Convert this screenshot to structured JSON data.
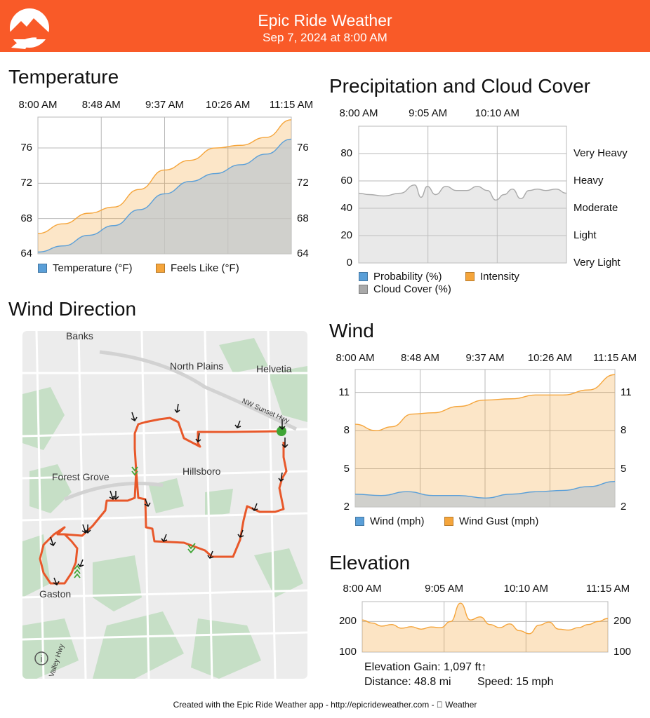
{
  "header": {
    "title": "Epic Ride Weather",
    "subtitle": "Sep 7, 2024 at 8:00 AM",
    "background": "#f95a28"
  },
  "temperature": {
    "title": "Temperature",
    "chart_data": {
      "type": "area",
      "x_ticks": [
        "8:00 AM",
        "8:48 AM",
        "9:37 AM",
        "10:26 AM",
        "11:15 AM"
      ],
      "y_ticks": [
        "64",
        "68",
        "72",
        "76"
      ],
      "ylim": [
        64,
        79.5
      ],
      "legend": [
        {
          "label": "Temperature (°F)",
          "color": "#5a9fd8"
        },
        {
          "label": "Feels Like (°F)",
          "color": "#f5a53b"
        }
      ],
      "series": [
        {
          "name": "Temperature (°F)",
          "color": "#5a9fd8",
          "x": [
            0,
            0.1,
            0.2,
            0.3,
            0.4,
            0.5,
            0.6,
            0.7,
            0.8,
            0.9,
            1
          ],
          "values": [
            64.2,
            64.9,
            66.1,
            67.2,
            69,
            70.8,
            72.2,
            73.1,
            74.1,
            75.3,
            77
          ]
        },
        {
          "name": "Feels Like (°F)",
          "color": "#f5a53b",
          "x": [
            0,
            0.1,
            0.2,
            0.3,
            0.4,
            0.5,
            0.6,
            0.7,
            0.8,
            0.9,
            1
          ],
          "values": [
            66.3,
            67.4,
            68.6,
            69.3,
            71.3,
            73.5,
            74.6,
            76,
            76.3,
            77.2,
            79.2
          ]
        }
      ]
    }
  },
  "precipitation": {
    "title": "Precipitation and Cloud Cover",
    "chart_data": {
      "type": "area",
      "x_ticks": [
        "8:00 AM",
        "9:05 AM",
        "10:10 AM"
      ],
      "y_ticks": [
        "0",
        "20",
        "40",
        "60",
        "80"
      ],
      "right_ticks": [
        "Very Light",
        "Light",
        "Moderate",
        "Heavy",
        "Very Heavy"
      ],
      "ylim": [
        0,
        100
      ],
      "legend": [
        {
          "label": "Probability (%)",
          "color": "#5a9fd8"
        },
        {
          "label": "Intensity",
          "color": "#f5a53b"
        },
        {
          "label": "Cloud Cover (%)",
          "color": "#a9a9a9"
        }
      ],
      "series": [
        {
          "name": "Cloud Cover (%)",
          "color": "#a9a9a9",
          "x": [
            0,
            0.05,
            0.12,
            0.2,
            0.27,
            0.3,
            0.33,
            0.37,
            0.42,
            0.47,
            0.52,
            0.57,
            0.62,
            0.66,
            0.7,
            0.74,
            0.78,
            0.82,
            0.86,
            0.9,
            0.95,
            1
          ],
          "values": [
            51,
            50,
            49,
            51,
            57,
            48,
            56,
            50,
            56,
            53,
            53,
            56,
            53,
            46,
            50,
            54,
            47,
            53,
            54,
            53,
            54,
            51
          ]
        }
      ]
    }
  },
  "wind_direction": {
    "title": "Wind Direction",
    "map": {
      "labels": [
        "Banks",
        "North Plains",
        "Helvetia",
        "NW Sunset Hwy",
        "Forest Grove",
        "Hillsboro",
        "Gaston",
        "Valley Hwy"
      ],
      "info_label": "i"
    }
  },
  "wind": {
    "title": "Wind",
    "chart_data": {
      "type": "area",
      "x_ticks": [
        "8:00 AM",
        "8:48 AM",
        "9:37 AM",
        "10:26 AM",
        "11:15 AM"
      ],
      "y_ticks": [
        "2",
        "5",
        "8",
        "11"
      ],
      "ylim": [
        2,
        12.8
      ],
      "legend": [
        {
          "label": "Wind (mph)",
          "color": "#5a9fd8"
        },
        {
          "label": "Wind Gust (mph)",
          "color": "#f5a53b"
        }
      ],
      "series": [
        {
          "name": "Wind (mph)",
          "color": "#5a9fd8",
          "x": [
            0,
            0.1,
            0.2,
            0.3,
            0.4,
            0.5,
            0.6,
            0.7,
            0.8,
            0.9,
            1
          ],
          "values": [
            3,
            2.9,
            3.2,
            2.9,
            2.9,
            2.7,
            3,
            3.2,
            3.3,
            3.6,
            4
          ]
        },
        {
          "name": "Wind Gust (mph)",
          "color": "#f5a53b",
          "x": [
            0,
            0.08,
            0.14,
            0.22,
            0.3,
            0.4,
            0.5,
            0.6,
            0.7,
            0.8,
            0.9,
            1
          ],
          "values": [
            8.5,
            8,
            8.3,
            9.3,
            9.4,
            9.9,
            10.4,
            10.5,
            10.8,
            10.8,
            11.2,
            12.4
          ]
        }
      ]
    }
  },
  "elevation": {
    "title": "Elevation",
    "chart_data": {
      "type": "area",
      "x_ticks": [
        "8:00 AM",
        "9:05 AM",
        "10:10 AM",
        "11:15 AM"
      ],
      "y_ticks": [
        "100",
        "200"
      ],
      "ylim": [
        100,
        265
      ],
      "series": [
        {
          "name": "Elevation",
          "color": "#f5a53b",
          "x": [
            0,
            0.04,
            0.08,
            0.12,
            0.16,
            0.2,
            0.24,
            0.28,
            0.32,
            0.36,
            0.4,
            0.44,
            0.48,
            0.52,
            0.56,
            0.6,
            0.64,
            0.68,
            0.72,
            0.76,
            0.8,
            0.84,
            0.88,
            0.92,
            0.96,
            1
          ],
          "values": [
            205,
            195,
            185,
            190,
            178,
            183,
            175,
            182,
            180,
            200,
            260,
            205,
            215,
            190,
            180,
            192,
            170,
            160,
            188,
            198,
            175,
            172,
            180,
            190,
            200,
            210
          ]
        }
      ]
    },
    "stats": {
      "gain": "Elevation Gain: 1,097 ft↑",
      "distance": "Distance: 48.8 mi",
      "speed": "Speed: 15 mph"
    }
  },
  "footer": {
    "text": "Created with the Epic Ride Weather app - http://epicrideweather.com -  Weather"
  }
}
